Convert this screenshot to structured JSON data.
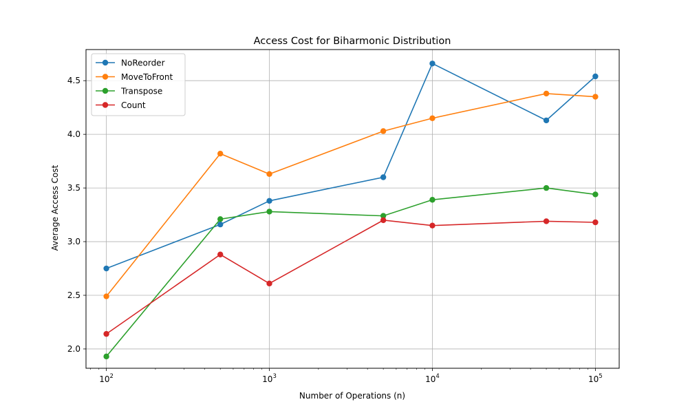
{
  "chart_data": {
    "type": "line",
    "title": "Access Cost for Biharmonic Distribution",
    "xlabel": "Number of Operations (n)",
    "ylabel": "Average Access Cost",
    "xscale": "log",
    "xlim": [
      75,
      140000
    ],
    "ylim": [
      1.82,
      4.79
    ],
    "grid": true,
    "legend_position": "top-left",
    "x": [
      100,
      500,
      1000,
      5000,
      10000,
      50000,
      100000
    ],
    "x_ticks": [
      {
        "value": 100,
        "base": "10",
        "exp": "2"
      },
      {
        "value": 1000,
        "base": "10",
        "exp": "3"
      },
      {
        "value": 10000,
        "base": "10",
        "exp": "4"
      },
      {
        "value": 100000,
        "base": "10",
        "exp": "5"
      }
    ],
    "y_ticks": [
      "2.0",
      "2.5",
      "3.0",
      "3.5",
      "4.0",
      "4.5"
    ],
    "series": [
      {
        "name": "NoReorder",
        "color": "#1f77b4",
        "values": [
          2.75,
          3.16,
          3.38,
          3.6,
          4.66,
          4.13,
          4.54
        ]
      },
      {
        "name": "MoveToFront",
        "color": "#ff7f0e",
        "values": [
          2.49,
          3.82,
          3.63,
          4.03,
          4.15,
          4.38,
          4.35
        ]
      },
      {
        "name": "Transpose",
        "color": "#2ca02c",
        "values": [
          1.93,
          3.21,
          3.28,
          3.24,
          3.39,
          3.5,
          3.44
        ]
      },
      {
        "name": "Count",
        "color": "#d62728",
        "values": [
          2.14,
          2.88,
          2.61,
          3.2,
          3.15,
          3.19,
          3.18
        ]
      }
    ]
  }
}
